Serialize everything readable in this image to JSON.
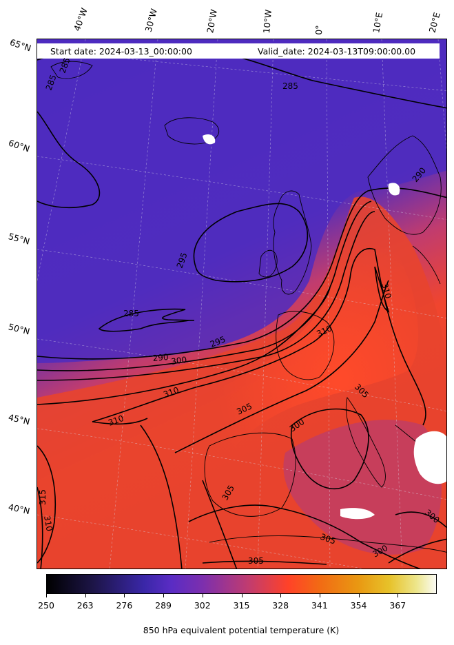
{
  "header": {
    "start_date": "Start date: 2024-03-13_00:00:00",
    "valid_date": "Valid_date: 2024-03-13T09:00:00.00"
  },
  "longitude_labels": [
    "40°W",
    "30°W",
    "20°W",
    "10°W",
    "0°",
    "10°E",
    "20°E"
  ],
  "latitude_labels": [
    "65°N",
    "60°N",
    "55°N",
    "50°N",
    "45°N",
    "40°N"
  ],
  "contour_labels": [
    "285",
    "285",
    "285",
    "285",
    "295",
    "290",
    "300",
    "295",
    "290",
    "310",
    "310",
    "310",
    "305",
    "305",
    "300",
    "305",
    "305",
    "305",
    "300",
    "300",
    "310",
    "315",
    "310"
  ],
  "colorbar": {
    "ticks": [
      "250",
      "263",
      "276",
      "289",
      "302",
      "315",
      "328",
      "341",
      "354",
      "367"
    ],
    "title": "850 hPa equivalent potential temperature (K)"
  },
  "colors": {
    "cold": "#4a2bc0",
    "mid": "#c13c6e",
    "warm": "#ff4228",
    "contour": "#000000"
  }
}
